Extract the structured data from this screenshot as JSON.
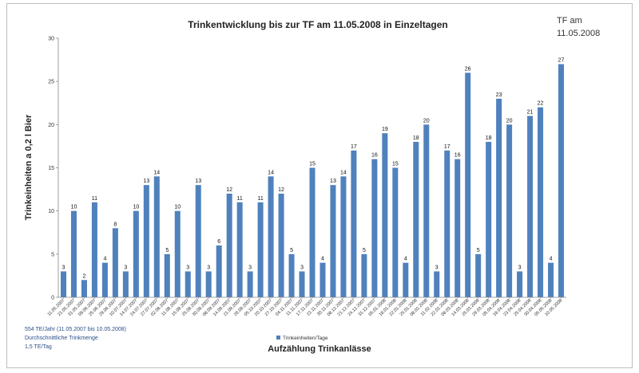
{
  "chart_data": {
    "type": "bar",
    "title": "Trinkentwicklung bis zur TF am 11.05.2008 in Einzeltagen",
    "xlabel": "Aufzählung Trinkanlässe",
    "ylabel": "Trinkeinheiten a 0,2 l Bier",
    "ylim": [
      0,
      30
    ],
    "yticks": [
      0,
      5,
      10,
      15,
      20,
      25,
      30
    ],
    "grid": false,
    "legend_position": "bottom-center",
    "series": [
      {
        "name": "Trinkeinheiten/Tage",
        "color": "#4f81bd",
        "values": [
          3,
          10,
          2,
          11,
          4,
          8,
          3,
          10,
          13,
          14,
          5,
          10,
          3,
          13,
          3,
          6,
          12,
          11,
          3,
          11,
          14,
          12,
          5,
          3,
          15,
          4,
          13,
          14,
          17,
          5,
          16,
          19,
          15,
          4,
          18,
          20,
          3,
          17,
          16,
          26,
          5,
          18,
          23,
          20,
          3,
          21,
          22,
          4,
          27
        ]
      }
    ],
    "categories": [
      "11.05.2007",
      "21.05.2007",
      "31.05.2007",
      "09.06.2007",
      "25.06.2007",
      "29.06.2007",
      "10.07.2007",
      "14.07.2007",
      "24.07.2007",
      "27.07.2007",
      "02.08.2007",
      "11.08.2007",
      "15.08.2007",
      "25.08.2007",
      "30.08.2007",
      "08.09.2007",
      "14.09.2007",
      "21.09.2007",
      "26.09.2007",
      "05.10.2007",
      "20.10.2007",
      "27.10.2007",
      "04.11.2007",
      "11.11.2007",
      "17.11.2007",
      "22.11.2007",
      "30.11.2007",
      "08.12.2007",
      "21.12.2007",
      "24.12.2007",
      "31.12.2007",
      "05.01.2008",
      "18.01.2008",
      "22.01.2008",
      "25.01.2008",
      "08.02.2008",
      "11.02.2008",
      "22.02.2008",
      "08.03.2008",
      "14.03.2008",
      "25.03.2008",
      "29.03.2008",
      "05.04.2008",
      "18.04.2008",
      "23.04.2008",
      "25.04.2008",
      "30.04.2008",
      "05.05.2008",
      "10.05.2008"
    ]
  },
  "annotation": {
    "line1": "TF am",
    "line2": "11.05.2008"
  },
  "stats": {
    "line1": "554 TE/Jahr (11.05.2007 bis 10.05.2008)",
    "line2": "Durchschnittliche Trinkmenge",
    "line3": "1,5 TE/Tag"
  }
}
